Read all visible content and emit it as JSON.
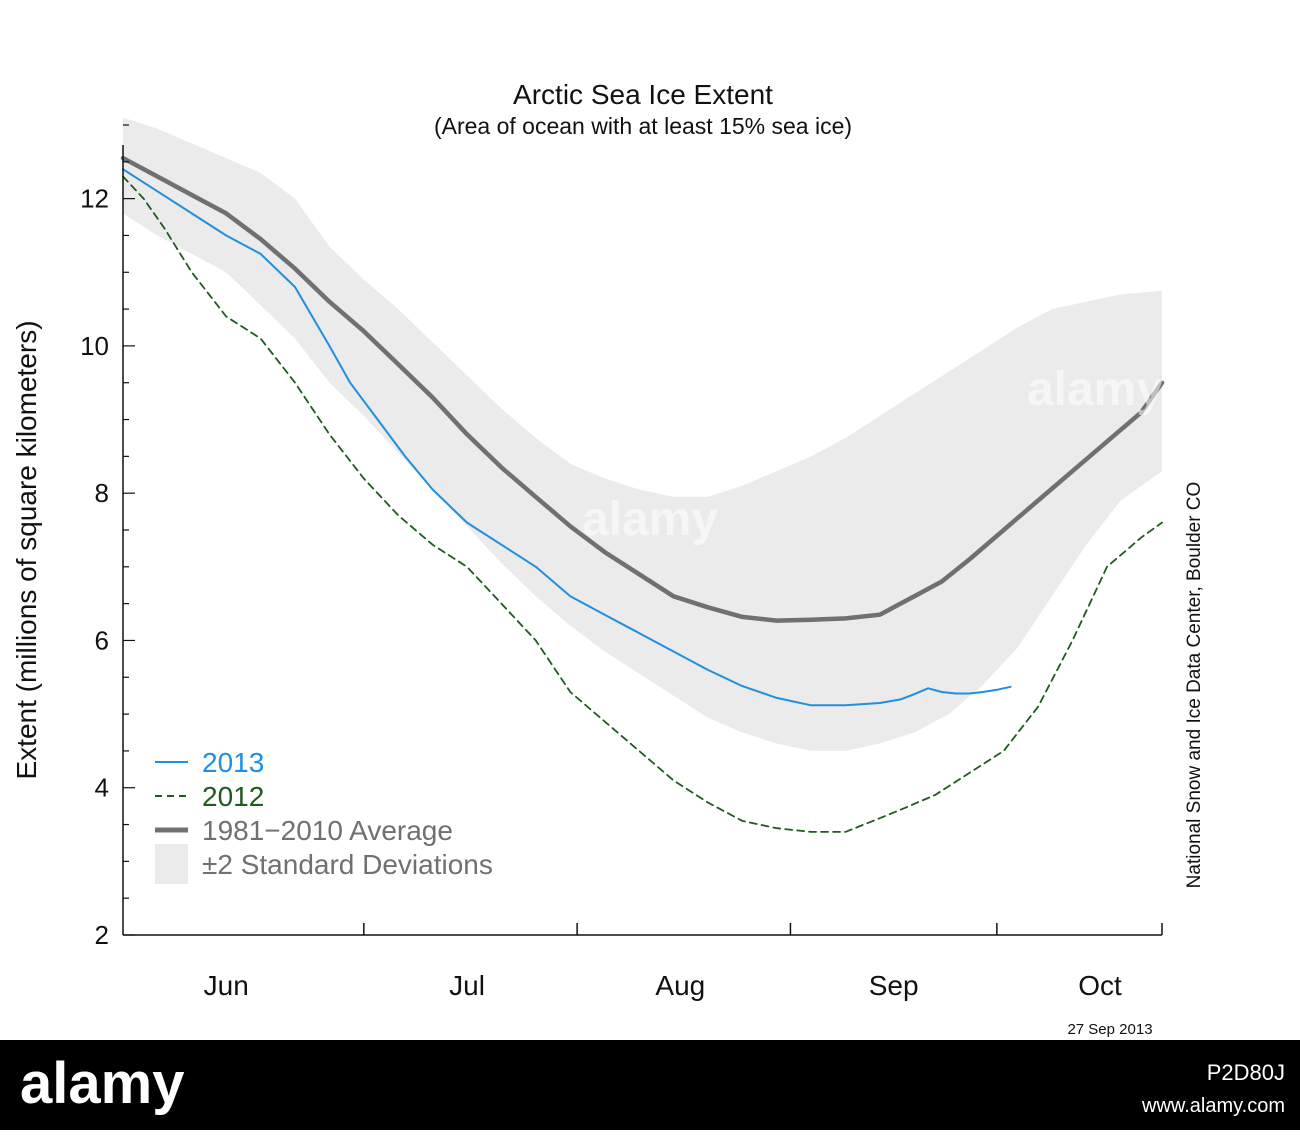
{
  "chart_data": {
    "type": "line",
    "title": "Arctic Sea Ice Extent",
    "subtitle": "(Area of ocean with at least 15% sea ice)",
    "ylabel": "Extent (millions of square kilometers)",
    "xlabel": "",
    "ylim": [
      2,
      13
    ],
    "yticks": [
      2,
      4,
      6,
      8,
      10,
      12
    ],
    "month_labels": [
      "Jun",
      "Jul",
      "Aug",
      "Sep",
      "Oct"
    ],
    "x_unit": "day of year",
    "xlim": [
      147,
      298
    ],
    "month_boundaries": [
      182,
      213,
      244,
      274
    ],
    "month_label_days": [
      162,
      197,
      228,
      259,
      289
    ],
    "series": [
      {
        "name": "2013",
        "color": "#1e90e0",
        "style": "solid",
        "x": [
          147,
          152,
          157,
          162,
          167,
          172,
          177,
          180,
          184,
          188,
          192,
          197,
          202,
          207,
          212,
          217,
          222,
          227,
          232,
          237,
          242,
          247,
          252,
          257,
          260,
          262,
          264,
          266,
          268,
          270,
          272,
          274,
          276
        ],
        "values": [
          12.4,
          12.1,
          11.8,
          11.5,
          11.25,
          10.8,
          10.0,
          9.5,
          9.0,
          8.5,
          8.05,
          7.6,
          7.3,
          7.0,
          6.6,
          6.35,
          6.1,
          5.85,
          5.6,
          5.38,
          5.22,
          5.12,
          5.12,
          5.15,
          5.2,
          5.27,
          5.35,
          5.3,
          5.28,
          5.28,
          5.3,
          5.33,
          5.37
        ]
      },
      {
        "name": "2012",
        "color": "#1f5a1f",
        "style": "dashed",
        "x": [
          147,
          150,
          153,
          157,
          162,
          167,
          172,
          177,
          182,
          187,
          192,
          197,
          202,
          207,
          212,
          217,
          222,
          227,
          232,
          237,
          242,
          247,
          252,
          256,
          260,
          265,
          270,
          275,
          280,
          285,
          290,
          295,
          298
        ],
        "values": [
          12.3,
          12.0,
          11.6,
          11.0,
          10.4,
          10.1,
          9.5,
          8.8,
          8.2,
          7.7,
          7.3,
          7.0,
          6.5,
          6.0,
          5.3,
          4.9,
          4.5,
          4.1,
          3.8,
          3.55,
          3.45,
          3.4,
          3.4,
          3.55,
          3.7,
          3.9,
          4.2,
          4.5,
          5.1,
          6.0,
          7.0,
          7.4,
          7.6
        ]
      },
      {
        "name": "1981−2010 Average",
        "color": "#707070",
        "style": "solid-thick",
        "x": [
          147,
          152,
          157,
          162,
          167,
          172,
          177,
          182,
          187,
          192,
          197,
          202,
          207,
          212,
          217,
          222,
          227,
          232,
          237,
          242,
          247,
          252,
          257,
          260,
          263,
          266,
          270,
          275,
          280,
          285,
          290,
          295,
          298
        ],
        "values": [
          12.55,
          12.3,
          12.05,
          11.8,
          11.45,
          11.05,
          10.6,
          10.2,
          9.75,
          9.3,
          8.8,
          8.35,
          7.95,
          7.55,
          7.2,
          6.9,
          6.6,
          6.45,
          6.32,
          6.27,
          6.28,
          6.3,
          6.35,
          6.5,
          6.65,
          6.8,
          7.1,
          7.5,
          7.9,
          8.3,
          8.7,
          9.1,
          9.5
        ]
      }
    ],
    "band": {
      "name": "±2 Standard Deviations",
      "color": "#ebebeb",
      "x": [
        147,
        152,
        157,
        162,
        167,
        172,
        177,
        182,
        187,
        192,
        197,
        202,
        207,
        212,
        217,
        222,
        227,
        232,
        237,
        242,
        247,
        252,
        257,
        262,
        267,
        272,
        277,
        282,
        287,
        292,
        298
      ],
      "upper": [
        13.1,
        12.95,
        12.75,
        12.55,
        12.35,
        12.0,
        11.35,
        10.9,
        10.5,
        10.05,
        9.6,
        9.15,
        8.75,
        8.4,
        8.2,
        8.05,
        7.95,
        7.95,
        8.1,
        8.3,
        8.5,
        8.75,
        9.05,
        9.35,
        9.65,
        9.95,
        10.25,
        10.5,
        10.6,
        10.7,
        10.75
      ],
      "lower": [
        11.8,
        11.5,
        11.25,
        11.0,
        10.55,
        10.1,
        9.5,
        9.05,
        8.55,
        8.05,
        7.55,
        7.05,
        6.6,
        6.2,
        5.85,
        5.55,
        5.25,
        4.95,
        4.75,
        4.6,
        4.5,
        4.5,
        4.6,
        4.75,
        5.0,
        5.4,
        5.9,
        6.6,
        7.3,
        7.9,
        8.3
      ]
    },
    "legend_position": "bottom-left",
    "grid": false,
    "credit": "National Snow and Ice Data Center, Boulder CO",
    "date_stamp": "27 Sep 2013"
  },
  "watermark": {
    "brand": "alamy",
    "image_id": "P2D80J",
    "url": "www.alamy.com"
  }
}
